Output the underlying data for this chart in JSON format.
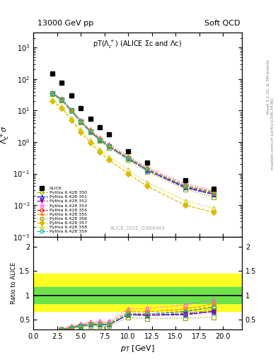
{
  "title_top": "13000 GeV pp",
  "title_right": "Soft QCD",
  "plot_title": "pT(Λc⁺⁺) (ALICE Σc and Λc)",
  "ylabel_main": "Λc⁺σ",
  "ylabel_ratio": "Ratio to ALICE",
  "xlabel": "p_T [GeV]",
  "right_label": "Rivet 3.1.10, ≥ 3M events",
  "right_label2": "mcplots.cern.ch [arXiv:1306.3436]",
  "watermark": "ALICE_2022_I1868463",
  "alice_x": [
    2.0,
    3.0,
    4.0,
    5.0,
    6.0,
    7.0,
    8.0,
    10.0,
    12.0,
    16.0,
    19.0
  ],
  "alice_y": [
    150.0,
    75.0,
    30.0,
    12.0,
    5.5,
    3.0,
    1.8,
    0.5,
    0.22,
    0.06,
    0.033
  ],
  "pythia_labels": [
    "Pythia 6.428 350",
    "Pythia 6.428 351",
    "Pythia 6.428 352",
    "Pythia 6.428 353",
    "Pythia 6.428 354",
    "Pythia 6.428 355",
    "Pythia 6.428 356",
    "Pythia 6.428 357",
    "Pythia 6.428 358",
    "Pythia 6.428 359"
  ],
  "pythia_colors": [
    "#aaaa00",
    "#0000ff",
    "#8800aa",
    "#ff44ff",
    "#ff0000",
    "#ff8800",
    "#88aa00",
    "#ddbb00",
    "#cccc00",
    "#00bbbb"
  ],
  "pythia_markers": [
    "s",
    "^",
    "v",
    "^",
    "o",
    "*",
    "s",
    "D",
    "^",
    "o"
  ],
  "pythia_linestyles": [
    "--",
    "--",
    "-.",
    ":",
    "--",
    "--",
    ":",
    "--",
    ":",
    "--"
  ],
  "pythia_x": [
    2.0,
    3.0,
    4.0,
    5.0,
    6.0,
    7.0,
    8.0,
    10.0,
    12.0,
    16.0,
    19.0
  ],
  "pythia_y_350": [
    35.0,
    22.0,
    10.0,
    4.5,
    2.2,
    1.2,
    0.72,
    0.3,
    0.13,
    0.038,
    0.023
  ],
  "pythia_y_351": [
    35.0,
    22.0,
    10.0,
    4.5,
    2.2,
    1.2,
    0.72,
    0.3,
    0.13,
    0.036,
    0.022
  ],
  "pythia_y_352": [
    35.0,
    22.0,
    10.0,
    4.5,
    2.2,
    1.2,
    0.72,
    0.3,
    0.13,
    0.037,
    0.022
  ],
  "pythia_y_353": [
    38.0,
    24.0,
    11.0,
    5.0,
    2.5,
    1.4,
    0.85,
    0.36,
    0.16,
    0.048,
    0.03
  ],
  "pythia_y_354": [
    35.0,
    22.0,
    10.0,
    4.5,
    2.2,
    1.2,
    0.73,
    0.31,
    0.135,
    0.04,
    0.025
  ],
  "pythia_y_355": [
    36.0,
    23.0,
    10.5,
    4.7,
    2.35,
    1.3,
    0.78,
    0.33,
    0.145,
    0.043,
    0.027
  ],
  "pythia_y_356": [
    34.0,
    21.0,
    9.5,
    4.2,
    2.05,
    1.1,
    0.66,
    0.27,
    0.115,
    0.032,
    0.018
  ],
  "pythia_y_357": [
    20.0,
    12.0,
    5.0,
    2.1,
    0.95,
    0.48,
    0.27,
    0.1,
    0.04,
    0.01,
    0.006
  ],
  "pythia_y_358": [
    22.0,
    13.5,
    5.8,
    2.5,
    1.15,
    0.6,
    0.34,
    0.135,
    0.053,
    0.014,
    0.008
  ],
  "pythia_y_359": [
    35.0,
    22.0,
    10.0,
    4.5,
    2.2,
    1.2,
    0.73,
    0.31,
    0.135,
    0.04,
    0.025
  ],
  "band_yellow_lo": 0.68,
  "band_yellow_hi": 1.45,
  "band_yellow_lo2": 0.68,
  "band_yellow_hi2": 1.35,
  "band_green_lo": 0.83,
  "band_green_hi": 1.17,
  "ylim_main_lo": 0.001,
  "ylim_main_hi": 3000.0,
  "ylim_ratio_lo": 0.3,
  "ylim_ratio_hi": 2.2,
  "xlim_lo": 0.0,
  "xlim_hi": 22.0,
  "ratio_yticks": [
    0.5,
    1.0,
    1.5,
    2.0
  ]
}
